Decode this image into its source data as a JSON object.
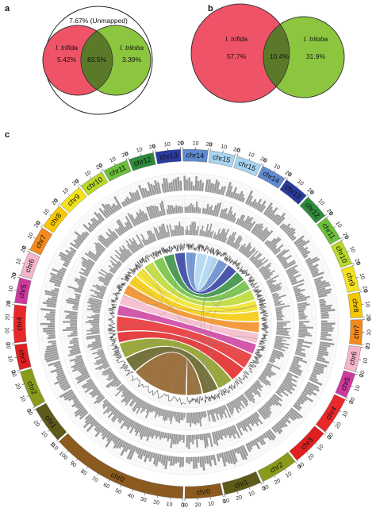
{
  "panels": {
    "a": {
      "letter": "a",
      "unmapped_label": "7.67% (Unmapped)",
      "left_name": "I. trifida",
      "right_name": "I. triloba",
      "left_pct": "5.42%",
      "overlap_pct": "83.5%",
      "right_pct": "3.39%"
    },
    "b": {
      "letter": "b",
      "left_name": "I. trifida",
      "right_name": "I. triloba",
      "left_pct": "57.7%",
      "overlap_pct": "10.4%",
      "right_pct": "31.9%"
    },
    "c": {
      "letter": "c"
    }
  },
  "colors": {
    "trifida": "#ee5367",
    "triloba": "#8cc63f",
    "overlap": "#5a7a2a"
  },
  "circos": {
    "chromosomes": [
      {
        "label": "chr0",
        "color": "#8b5a1e",
        "max": 110,
        "side": "left"
      },
      {
        "label": "chr1",
        "color": "#5d5a1a",
        "max": 30,
        "side": "left"
      },
      {
        "label": "chr2",
        "color": "#8a9a1a",
        "max": 30,
        "side": "left"
      },
      {
        "label": "chr3",
        "color": "#e02020",
        "max": 20,
        "side": "left"
      },
      {
        "label": "chr4",
        "color": "#e8282a",
        "max": 30,
        "side": "left"
      },
      {
        "label": "chr5",
        "color": "#cc3a9e",
        "max": 20,
        "side": "left"
      },
      {
        "label": "chr6",
        "color": "#f4b6c8",
        "max": 20,
        "side": "left"
      },
      {
        "label": "chr7",
        "color": "#f28a1e",
        "max": 20,
        "side": "left"
      },
      {
        "label": "chr8",
        "color": "#f5c800",
        "max": 20,
        "side": "left"
      },
      {
        "label": "chr9",
        "color": "#f3e21c",
        "max": 20,
        "side": "left"
      },
      {
        "label": "chr10",
        "color": "#b8d82a",
        "max": 20,
        "side": "left"
      },
      {
        "label": "chr11",
        "color": "#6cbf3a",
        "max": 20,
        "side": "left"
      },
      {
        "label": "chr12",
        "color": "#2e8b3a",
        "max": 20,
        "side": "left"
      },
      {
        "label": "chr13",
        "color": "#2a3b9e",
        "max": 20,
        "side": "left"
      },
      {
        "label": "chr14",
        "color": "#5f8ad0",
        "max": 20,
        "side": "left"
      },
      {
        "label": "chr15",
        "color": "#a8d4f0",
        "max": 20,
        "side": "left"
      },
      {
        "label": "chr15",
        "color": "#a8d4f0",
        "max": 20,
        "side": "right"
      },
      {
        "label": "chr14",
        "color": "#5f8ad0",
        "max": 20,
        "side": "right"
      },
      {
        "label": "chr13",
        "color": "#2a3b9e",
        "max": 20,
        "side": "right"
      },
      {
        "label": "chr12",
        "color": "#2e8b3a",
        "max": 20,
        "side": "right"
      },
      {
        "label": "chr11",
        "color": "#6cbf3a",
        "max": 20,
        "side": "right"
      },
      {
        "label": "chr10",
        "color": "#b8d82a",
        "max": 20,
        "side": "right"
      },
      {
        "label": "chr9",
        "color": "#f3e21c",
        "max": 20,
        "side": "right"
      },
      {
        "label": "chr8",
        "color": "#f5c800",
        "max": 20,
        "side": "right"
      },
      {
        "label": "chr7",
        "color": "#f28a1e",
        "max": 20,
        "side": "right"
      },
      {
        "label": "chr6",
        "color": "#f4b6c8",
        "max": 20,
        "side": "right"
      },
      {
        "label": "chr5",
        "color": "#cc3a9e",
        "max": 20,
        "side": "right"
      },
      {
        "label": "chr4",
        "color": "#e8282a",
        "max": 30,
        "side": "right"
      },
      {
        "label": "chr3",
        "color": "#e02020",
        "max": 30,
        "side": "right"
      },
      {
        "label": "chr2",
        "color": "#8a9a1a",
        "max": 30,
        "side": "right"
      },
      {
        "label": "chr1",
        "color": "#5d5a1a",
        "max": 30,
        "side": "right"
      },
      {
        "label": "chr0",
        "color": "#8b5a1e",
        "max": 30,
        "side": "right"
      }
    ]
  }
}
